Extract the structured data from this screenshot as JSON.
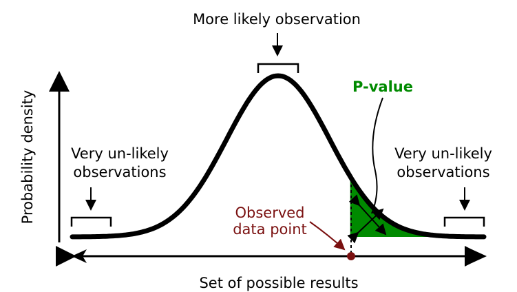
{
  "labels": {
    "top": "More likely observation",
    "left_line1": "Very un-likely",
    "left_line2": "observations",
    "right_line1": "Very un-likely",
    "right_line2": "observations",
    "pvalue": "P-value",
    "observed_line1": "Observed",
    "observed_line2": "data point",
    "x_axis": "Set of possible results",
    "y_axis": "Probability density"
  },
  "colors": {
    "curve": "#000000",
    "pvalue_fill": "#008a00",
    "pvalue_text": "#008a00",
    "observed": "#7a1010"
  },
  "distribution": {
    "type": "normal",
    "mean": 0,
    "sd": 1,
    "x_range": [
      -4,
      4
    ],
    "observed_value": 1.4
  }
}
